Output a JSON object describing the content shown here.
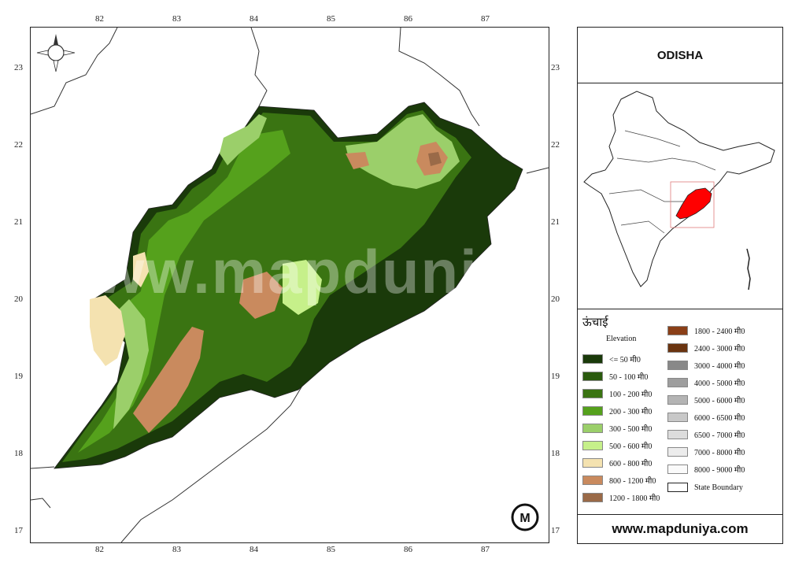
{
  "map": {
    "title": "ODISHA",
    "website": "www.mapduniya.com",
    "watermark": "www.mapduniya.com",
    "longitude_ticks": [
      "82",
      "83",
      "84",
      "85",
      "86",
      "87"
    ],
    "latitude_ticks": [
      "23",
      "22",
      "21",
      "20",
      "19",
      "18",
      "17"
    ],
    "highlight_color": "#ff0000",
    "icons": [
      "compass-rose-icon",
      "mapduniya-logo-icon"
    ]
  },
  "legend": {
    "title": "ऊंचाई",
    "subtitle": "Elevation",
    "items": [
      {
        "label": "<= 50 मी0",
        "color": "#1a3a0a"
      },
      {
        "label": "50 - 100 मी0",
        "color": "#2a5a0e"
      },
      {
        "label": "100 - 200 मी0",
        "color": "#3a7412"
      },
      {
        "label": "200 - 300 मी0",
        "color": "#55a11c"
      },
      {
        "label": "300 - 500 मी0",
        "color": "#9bcf6a"
      },
      {
        "label": "500 - 600 मी0",
        "color": "#c6f08a"
      },
      {
        "label": "600 - 800 मी0",
        "color": "#f4e2b0"
      },
      {
        "label": "800 - 1200 मी0",
        "color": "#c98a5e"
      },
      {
        "label": "1200 - 1800 मी0",
        "color": "#9a6a48"
      },
      {
        "label": "1800 - 2400 मी0",
        "color": "#8a3f18"
      },
      {
        "label": "2400 - 3000 मी0",
        "color": "#6a3410"
      },
      {
        "label": "3000 - 4000 मी0",
        "color": "#888888"
      },
      {
        "label": "4000 - 5000 मी0",
        "color": "#9e9e9e"
      },
      {
        "label": "5000 - 6000 मी0",
        "color": "#b4b4b4"
      },
      {
        "label": "6000 - 6500 मी0",
        "color": "#c8c8c8"
      },
      {
        "label": "6500 - 7000 मी0",
        "color": "#dcdcdc"
      },
      {
        "label": "7000 - 8000 मी0",
        "color": "#ececec"
      },
      {
        "label": "8000 - 9000 मी0",
        "color": "#fafafa"
      },
      {
        "label": "State Boundary",
        "color": "#ffffff"
      }
    ]
  }
}
